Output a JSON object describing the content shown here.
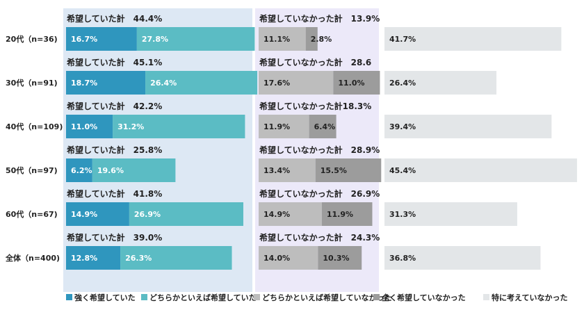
{
  "chart_data": {
    "type": "bar",
    "orientation": "horizontal",
    "stacked": true,
    "categories": [
      "20代（n=36)",
      "30代（n=91)",
      "40代（n=109)",
      "50代（n=97)",
      "60代（n=67)",
      "全体（n=400)"
    ],
    "series": [
      {
        "name": "強く希望していた",
        "values": [
          16.7,
          18.7,
          11.0,
          6.2,
          14.9,
          12.8
        ],
        "color": "#2f96be",
        "group": "wanted",
        "label_color": "#ffffff"
      },
      {
        "name": "どちらかといえば希望していた",
        "values": [
          27.8,
          26.4,
          31.2,
          19.6,
          26.9,
          26.3
        ],
        "color": "#5bbcc4",
        "group": "wanted",
        "label_color": "#ffffff"
      },
      {
        "name": "どちらかといえば希望していなかった",
        "values": [
          11.1,
          17.6,
          11.9,
          13.4,
          14.9,
          14.0
        ],
        "color": "#bdbdbd",
        "group": "not_wanted",
        "label_color": "#222222"
      },
      {
        "name": "全く希望していなかった",
        "values": [
          2.8,
          11.0,
          6.4,
          15.5,
          11.9,
          10.3
        ],
        "color": "#9c9c9c",
        "group": "not_wanted",
        "label_color": "#222222"
      },
      {
        "name": "特に考えていなかった",
        "values": [
          41.7,
          26.4,
          39.4,
          45.4,
          31.3,
          36.8
        ],
        "color": "#e3e6e8",
        "group": "no_thought",
        "label_color": "#222222"
      }
    ],
    "value_labels": [
      [
        "16.7%",
        "27.8%",
        "11.1%",
        "2.8%",
        "41.7%"
      ],
      [
        "18.7%",
        "26.4%",
        "17.6%",
        "11.0%",
        "26.4%"
      ],
      [
        "11.0%",
        "31.2%",
        "11.9%",
        "6.4%",
        "39.4%"
      ],
      [
        "6.2%",
        "19.6%",
        "13.4%",
        "15.5%",
        "45.4%"
      ],
      [
        "14.9%",
        "26.9%",
        "14.9%",
        "11.9%",
        "31.3%"
      ],
      [
        "12.8%",
        "26.3%",
        "14.0%",
        "10.3%",
        "36.8%"
      ]
    ],
    "group_totals": {
      "wanted": [
        "希望していた計　44.4%",
        "希望していた計　45.1%",
        "希望していた計　42.2%",
        "希望していた計　25.8%",
        "希望していた計　41.8%",
        "希望していた計　39.0%"
      ],
      "not_wanted": [
        "希望していなかった計　13.9%",
        "希望していなかった計　28.6",
        "希望していなかった計18.3%",
        "希望していなかった計　28.9%",
        "希望していなかった計　26.9%",
        "希望していなかった計　24.3%"
      ]
    },
    "panel_colors": {
      "wanted": "#dde8f4",
      "not_wanted": "#ece9f9"
    },
    "legend_position": "bottom",
    "title": "",
    "xlabel": "",
    "ylabel": ""
  }
}
